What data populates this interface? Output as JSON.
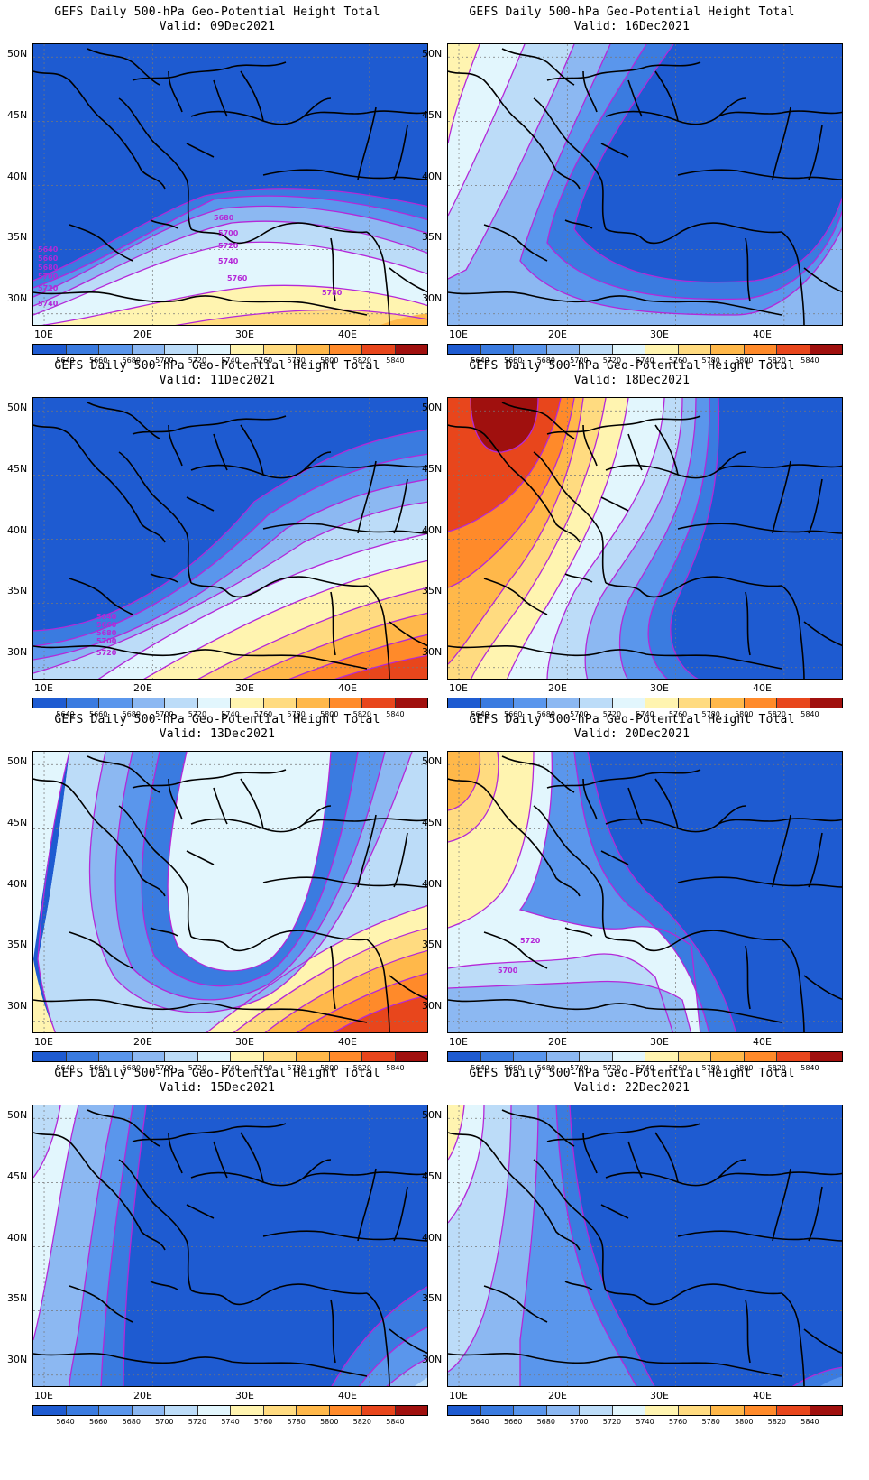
{
  "panels": [
    {
      "title": "GEFS Daily 500-hPa Geo-Potential Height Total",
      "valid": "Valid: 09Dec2021",
      "contour_labels": [
        "5680",
        "5700",
        "5720",
        "5740",
        "5760",
        "5780",
        "5640",
        "5660",
        "5680",
        "5700",
        "5720",
        "5740"
      ]
    },
    {
      "title": "GEFS Daily 500-hPa Geo-Potential Height Total",
      "valid": "Valid: 16Dec2021",
      "contour_labels": []
    },
    {
      "title": "GEFS Daily 500-hPa Geo-Potential Height Total",
      "valid": "Valid: 11Dec2021",
      "contour_labels": [
        "5640",
        "5660",
        "5680",
        "5700",
        "5720"
      ]
    },
    {
      "title": "GEFS Daily 500-hPa Geo-Potential Height Total",
      "valid": "Valid: 18Dec2021",
      "contour_labels": []
    },
    {
      "title": "GEFS Daily 500-hPa Geo-Potential Height Total",
      "valid": "Valid: 13Dec2021",
      "contour_labels": []
    },
    {
      "title": "GEFS Daily 500-hPa Geo-Potential Height Total",
      "valid": "Valid: 20Dec2021",
      "contour_labels": [
        "5720",
        "5700"
      ]
    },
    {
      "title": "GEFS Daily 500-hPa Geo-Potential Height Total",
      "valid": "Valid: 15Dec2021",
      "contour_labels": []
    },
    {
      "title": "GEFS Daily 500-hPa Geo-Potential Height Total",
      "valid": "Valid: 22Dec2021",
      "contour_labels": []
    }
  ],
  "lat_labels": [
    "50N",
    "45N",
    "40N",
    "35N",
    "30N"
  ],
  "lon_labels": [
    "10E",
    "20E",
    "30E",
    "40E"
  ],
  "colorbar": {
    "labels": [
      "5640",
      "5660",
      "5680",
      "5700",
      "5720",
      "5740",
      "5760",
      "5780",
      "5800",
      "5820",
      "5840"
    ],
    "colors": [
      "#1E5BD1",
      "#3A7BE0",
      "#5A96EC",
      "#8CB8F2",
      "#BCDCF8",
      "#E2F6FD",
      "#FFF4B0",
      "#FFDB80",
      "#FFB84A",
      "#FF8A2A",
      "#E8461C",
      "#A0100E"
    ]
  },
  "contour_color": "#B428D8",
  "boundary_color": "#000000"
}
